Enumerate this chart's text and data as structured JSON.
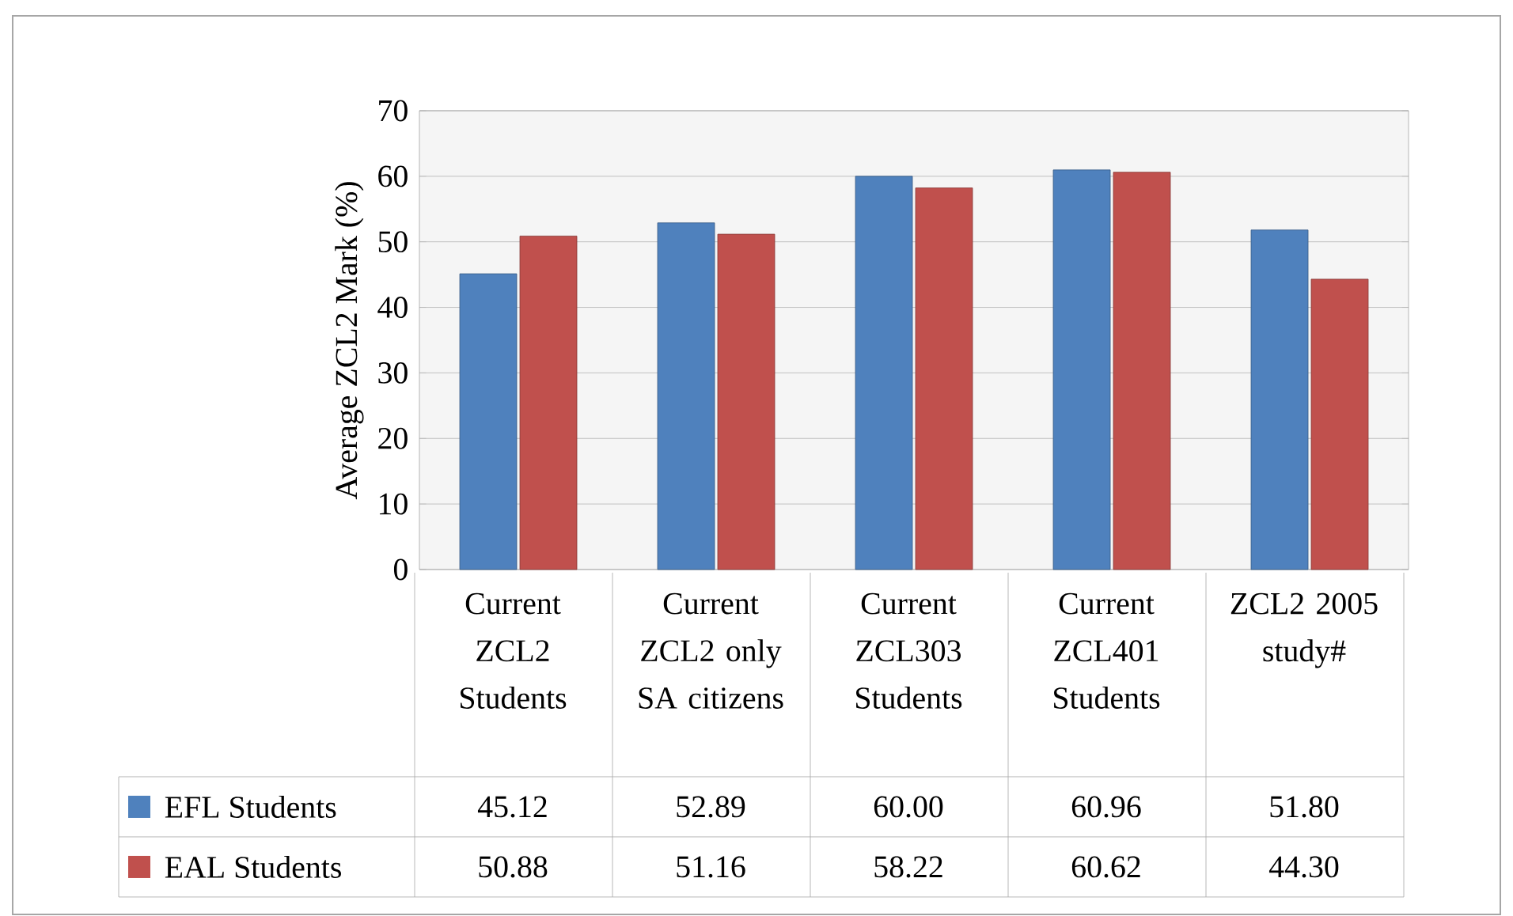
{
  "chart_data": {
    "type": "bar",
    "ylabel": "Average  ZCL2 Mark  (%)",
    "categories": [
      "Current ZCL2 Students",
      "Current ZCL2 only SA citizens",
      "Current ZCL303 Students",
      "Current ZCL401 Students",
      "ZCL2 2005 study#"
    ],
    "series": [
      {
        "name": "EFL Students",
        "color": "#4f81bd",
        "values": [
          45.12,
          52.89,
          60.0,
          60.96,
          51.8
        ],
        "value_labels": [
          "45.12",
          "52.89",
          "60.00",
          "60.96",
          "51.80"
        ]
      },
      {
        "name": "EAL Students",
        "color": "#c0504d",
        "values": [
          50.88,
          51.16,
          58.22,
          60.62,
          44.3
        ],
        "value_labels": [
          "50.88",
          "51.16",
          "58.22",
          "60.62",
          "44.30"
        ]
      }
    ],
    "ylim": [
      0,
      70
    ],
    "yticks": [
      0,
      10,
      20,
      30,
      40,
      50,
      60,
      70
    ],
    "grid": "y",
    "legend": "bottom"
  }
}
